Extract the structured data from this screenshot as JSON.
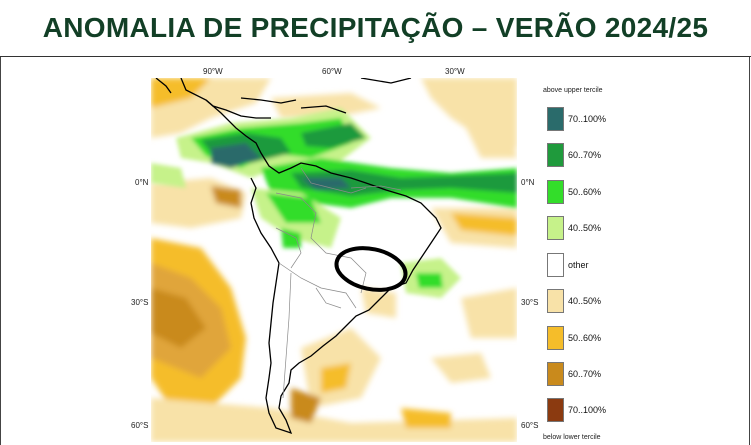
{
  "title": "ANOMALIA DE PRECIPITAÇÃO – VERÃO 2024/25",
  "map": {
    "lon_labels": [
      "90°W",
      "60°W",
      "30°W"
    ],
    "lat_labels": {
      "eq_left": "0°N",
      "eq_right": "0°N",
      "s30_left": "30°S",
      "s30_right": "30°S",
      "s60_left": "60°S",
      "s60_right": "60°S"
    }
  },
  "legend": {
    "above_header": "above upper tercile",
    "below_header": "below lower tercile",
    "items": [
      {
        "label": "70..100%",
        "color": "#2a6b6b"
      },
      {
        "label": "60..70%",
        "color": "#1f9a3c"
      },
      {
        "label": "50..60%",
        "color": "#33dd2a"
      },
      {
        "label": "40..50%",
        "color": "#c6f28a"
      },
      {
        "label": "other",
        "color": "#ffffff"
      },
      {
        "label": "40..50%",
        "color": "#f8e2a8"
      },
      {
        "label": "50..60%",
        "color": "#f5bd2a"
      },
      {
        "label": "60..70%",
        "color": "#c98a1c"
      },
      {
        "label": "70..100%",
        "color": "#8b3a10"
      }
    ]
  }
}
